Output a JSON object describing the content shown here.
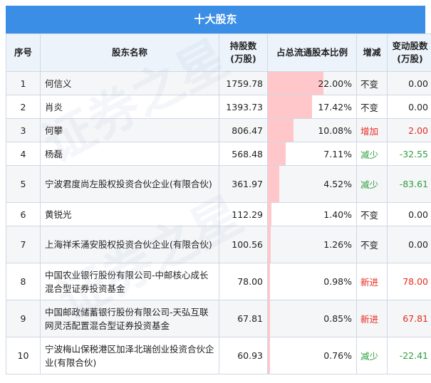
{
  "title": "十大股东",
  "headers": {
    "rank": "序号",
    "name": "股东名称",
    "shares": "持股数\n(万股)",
    "ratio": "占总流通股本比例",
    "change": "增减",
    "delta": "变动股数\n(万股)"
  },
  "colors": {
    "header_bg": "#3a8ee6",
    "bar": "#ffc7c9",
    "increase": "#e8291f",
    "decrease": "#2e9d3c"
  },
  "rows": [
    {
      "rank": "1",
      "name": "何信义",
      "shares": "1759.78",
      "ratio": "22.00%",
      "ratio_value": 22.0,
      "change": "不变",
      "change_type": "flat",
      "delta": "0.00"
    },
    {
      "rank": "2",
      "name": "肖炎",
      "shares": "1393.73",
      "ratio": "17.42%",
      "ratio_value": 17.42,
      "change": "不变",
      "change_type": "flat",
      "delta": "0.00"
    },
    {
      "rank": "3",
      "name": "何攀",
      "shares": "806.47",
      "ratio": "10.08%",
      "ratio_value": 10.08,
      "change": "增加",
      "change_type": "up",
      "delta": "2.00"
    },
    {
      "rank": "4",
      "name": "杨磊",
      "shares": "568.48",
      "ratio": "7.11%",
      "ratio_value": 7.11,
      "change": "减少",
      "change_type": "down",
      "delta": "-32.55"
    },
    {
      "rank": "5",
      "name": "宁波君度尚左股权投资合伙企业(有限合伙)",
      "shares": "361.97",
      "ratio": "4.52%",
      "ratio_value": 4.52,
      "change": "减少",
      "change_type": "down",
      "delta": "-83.61"
    },
    {
      "rank": "6",
      "name": "黄锐光",
      "shares": "112.29",
      "ratio": "1.40%",
      "ratio_value": 1.4,
      "change": "不变",
      "change_type": "flat",
      "delta": "0.00"
    },
    {
      "rank": "7",
      "name": "上海祥禾涌安股权投资合伙企业(有限合伙)",
      "shares": "100.56",
      "ratio": "1.26%",
      "ratio_value": 1.26,
      "change": "不变",
      "change_type": "flat",
      "delta": "0.00"
    },
    {
      "rank": "8",
      "name": "中国农业银行股份有限公司-中邮核心成长混合型证券投资基金",
      "shares": "78.00",
      "ratio": "0.98%",
      "ratio_value": 0.98,
      "change": "新进",
      "change_type": "up",
      "delta": "78.00"
    },
    {
      "rank": "9",
      "name": "中国邮政储蓄银行股份有限公司-天弘互联网灵活配置混合型证券投资基金",
      "shares": "67.81",
      "ratio": "0.85%",
      "ratio_value": 0.85,
      "change": "新进",
      "change_type": "up",
      "delta": "67.81"
    },
    {
      "rank": "10",
      "name": "宁波梅山保税港区加泽北瑞创业投资合伙企业(有限合伙)",
      "shares": "60.93",
      "ratio": "0.76%",
      "ratio_value": 0.76,
      "change": "减少",
      "change_type": "down",
      "delta": "-22.41"
    }
  ]
}
